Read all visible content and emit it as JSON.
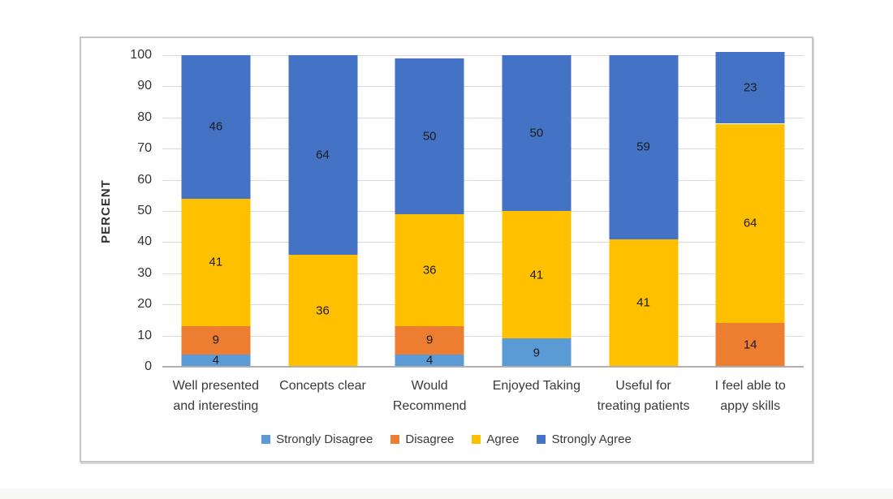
{
  "chart_data": {
    "type": "bar",
    "stacked": true,
    "title": "",
    "xlabel": "",
    "ylabel": "PERCENT",
    "ylim": [
      0,
      100
    ],
    "yticks": [
      0,
      10,
      20,
      30,
      40,
      50,
      60,
      70,
      80,
      90,
      100
    ],
    "grid": true,
    "legend_position": "bottom",
    "categories": [
      [
        "Well presented",
        "and interesting"
      ],
      [
        "Concepts clear"
      ],
      [
        "Would",
        "Recommend"
      ],
      [
        "Enjoyed Taking"
      ],
      [
        "Useful for",
        "treating patients"
      ],
      [
        "I feel able to",
        "appy skills"
      ]
    ],
    "series": [
      {
        "name": "Strongly Disagree",
        "color": "#5B9BD5",
        "values": [
          4,
          0,
          4,
          9,
          0,
          0
        ]
      },
      {
        "name": "Disagree",
        "color": "#ED7D31",
        "values": [
          9,
          0,
          9,
          0,
          0,
          14
        ]
      },
      {
        "name": "Agree",
        "color": "#FFC000",
        "values": [
          41,
          36,
          36,
          41,
          41,
          64
        ]
      },
      {
        "name": "Strongly Agree",
        "color": "#4472C4",
        "values": [
          46,
          64,
          50,
          50,
          59,
          23
        ]
      }
    ]
  },
  "style_colors": {
    "gridline": "#d9d9d9",
    "axis_line": "#b0b0b0",
    "frame_border": "#c6c6c6",
    "text": "#333333",
    "data_label": "#1c1c1c"
  }
}
